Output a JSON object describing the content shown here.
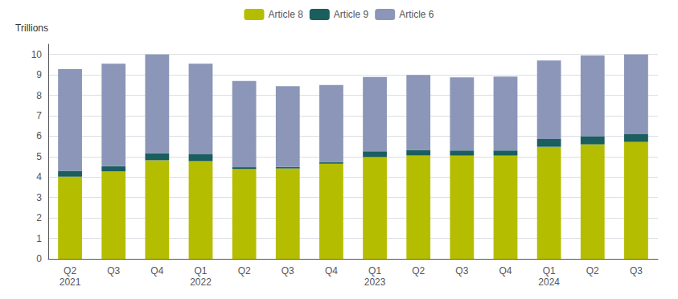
{
  "chart_data": {
    "type": "bar",
    "stacked": true,
    "y_label": "Trillions",
    "categories": [
      "Q2\n2021",
      "Q3",
      "Q4",
      "Q1\n2022",
      "Q2",
      "Q3",
      "Q4",
      "Q1\n2023",
      "Q2",
      "Q3",
      "Q4",
      "Q1\n2024",
      "Q2",
      "Q3"
    ],
    "series": [
      {
        "name": "Article 8",
        "color": "#b5bd00",
        "values": [
          4.02,
          4.28,
          4.82,
          4.78,
          4.4,
          4.42,
          4.65,
          4.98,
          5.05,
          5.05,
          5.05,
          5.48,
          5.6,
          5.72
        ]
      },
      {
        "name": "Article 9",
        "color": "#1a5e5e",
        "values": [
          0.28,
          0.25,
          0.35,
          0.33,
          0.08,
          0.07,
          0.08,
          0.28,
          0.28,
          0.25,
          0.25,
          0.38,
          0.4,
          0.38
        ]
      },
      {
        "name": "Article 6",
        "color": "#8b96b8",
        "values": [
          4.98,
          5.02,
          4.83,
          4.44,
          4.22,
          3.96,
          3.77,
          3.64,
          3.67,
          3.58,
          3.62,
          3.84,
          3.95,
          3.9
        ]
      }
    ],
    "ylim": [
      0,
      10.5
    ],
    "yticks": [
      0,
      1,
      2,
      3,
      4,
      5,
      6,
      7,
      8,
      9,
      10
    ],
    "grid": true,
    "legend": "top"
  }
}
